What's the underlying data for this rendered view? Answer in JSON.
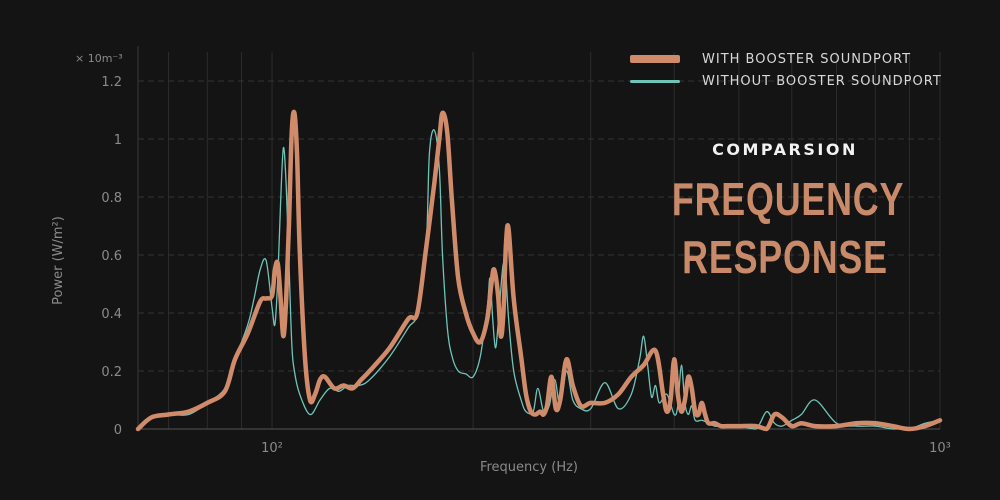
{
  "chart_data": {
    "type": "line",
    "title": "FREQUENCY RESPONSE",
    "kicker": "COMPARSION",
    "xlabel": "Frequency (Hz)",
    "ylabel": "Power (W/m²)",
    "y_multiplier": "× 10m⁻³",
    "x_scale": "log",
    "xlim": [
      63,
      1000
    ],
    "ylim": [
      0,
      1.3
    ],
    "x_ticks": [
      {
        "value": 100,
        "label": "10²"
      },
      {
        "value": 1000,
        "label": "10³"
      }
    ],
    "y_ticks": [
      {
        "value": 0,
        "label": "0"
      },
      {
        "value": 0.2,
        "label": "0.2"
      },
      {
        "value": 0.4,
        "label": "0.4"
      },
      {
        "value": 0.6,
        "label": "0.6"
      },
      {
        "value": 0.8,
        "label": "0.8"
      },
      {
        "value": 1,
        "label": "1"
      },
      {
        "value": 1.2,
        "label": "1.2"
      }
    ],
    "grid": true,
    "legend_position": "top-right",
    "series": [
      {
        "name": "WITH BOOSTER SOUNDPORT",
        "color": "#d08c6a",
        "x": [
          63,
          66,
          70,
          75,
          80,
          85,
          88,
          92,
          96,
          98,
          100,
          101,
          102,
          103,
          104,
          105,
          106,
          107,
          108,
          109,
          110,
          112,
          114,
          116,
          118,
          120,
          124,
          128,
          132,
          136,
          140,
          150,
          160,
          165,
          170,
          175,
          178,
          180,
          183,
          186,
          190,
          195,
          200,
          205,
          210,
          213,
          215,
          218,
          220,
          222,
          224,
          226,
          230,
          236,
          240,
          244,
          248,
          252,
          255,
          258,
          262,
          266,
          270,
          276,
          282,
          290,
          300,
          315,
          330,
          345,
          360,
          375,
          385,
          390,
          395,
          400,
          405,
          410,
          415,
          420,
          425,
          430,
          435,
          440,
          445,
          450,
          460,
          470,
          480,
          500,
          530,
          550,
          565,
          580,
          600,
          620,
          650,
          700,
          750,
          800,
          850,
          900,
          950,
          1000
        ],
        "y": [
          0.0,
          0.04,
          0.05,
          0.06,
          0.09,
          0.13,
          0.24,
          0.33,
          0.44,
          0.45,
          0.46,
          0.55,
          0.57,
          0.45,
          0.32,
          0.45,
          0.7,
          1.02,
          1.09,
          0.95,
          0.62,
          0.25,
          0.1,
          0.12,
          0.17,
          0.18,
          0.14,
          0.15,
          0.14,
          0.17,
          0.2,
          0.28,
          0.38,
          0.4,
          0.62,
          0.85,
          1.0,
          1.09,
          1.02,
          0.78,
          0.52,
          0.4,
          0.33,
          0.3,
          0.38,
          0.5,
          0.55,
          0.46,
          0.32,
          0.4,
          0.64,
          0.69,
          0.45,
          0.25,
          0.12,
          0.06,
          0.05,
          0.06,
          0.05,
          0.08,
          0.18,
          0.07,
          0.1,
          0.24,
          0.15,
          0.08,
          0.09,
          0.09,
          0.12,
          0.18,
          0.22,
          0.27,
          0.12,
          0.06,
          0.1,
          0.24,
          0.12,
          0.06,
          0.1,
          0.18,
          0.14,
          0.06,
          0.05,
          0.09,
          0.05,
          0.02,
          0.02,
          0.01,
          0.01,
          0.01,
          0.01,
          0.0,
          0.05,
          0.04,
          0.01,
          0.02,
          0.01,
          0.01,
          0.02,
          0.02,
          0.01,
          0.0,
          0.01,
          0.03
        ]
      },
      {
        "name": "WITHOUT BOOSTER SOUNDPORT",
        "color": "#6fc4b8",
        "x": [
          63,
          66,
          70,
          75,
          80,
          85,
          88,
          92,
          94,
          96,
          98,
          100,
          101,
          102,
          103,
          104,
          105,
          106,
          107,
          108,
          110,
          114,
          118,
          122,
          126,
          130,
          135,
          140,
          150,
          160,
          165,
          170,
          172,
          175,
          178,
          180,
          183,
          186,
          190,
          195,
          200,
          205,
          210,
          212,
          214,
          216,
          218,
          220,
          222,
          224,
          226,
          230,
          236,
          240,
          246,
          250,
          255,
          260,
          265,
          270,
          276,
          282,
          290,
          300,
          315,
          330,
          345,
          355,
          360,
          365,
          370,
          375,
          380,
          390,
          400,
          405,
          410,
          415,
          420,
          425,
          430,
          440,
          450,
          460,
          470,
          480,
          500,
          530,
          550,
          565,
          580,
          600,
          620,
          650,
          700,
          750,
          800,
          850,
          900,
          950,
          1000
        ],
        "y": [
          0.0,
          0.04,
          0.05,
          0.05,
          0.09,
          0.14,
          0.24,
          0.36,
          0.45,
          0.55,
          0.58,
          0.42,
          0.36,
          0.52,
          0.78,
          0.97,
          0.84,
          0.58,
          0.3,
          0.2,
          0.12,
          0.05,
          0.1,
          0.14,
          0.13,
          0.15,
          0.15,
          0.17,
          0.25,
          0.35,
          0.4,
          0.62,
          0.95,
          1.03,
          0.9,
          0.6,
          0.35,
          0.25,
          0.2,
          0.19,
          0.18,
          0.25,
          0.42,
          0.52,
          0.38,
          0.28,
          0.36,
          0.48,
          0.57,
          0.52,
          0.38,
          0.2,
          0.1,
          0.06,
          0.06,
          0.14,
          0.06,
          0.08,
          0.17,
          0.08,
          0.2,
          0.1,
          0.07,
          0.07,
          0.16,
          0.07,
          0.12,
          0.24,
          0.32,
          0.22,
          0.11,
          0.15,
          0.09,
          0.12,
          0.05,
          0.08,
          0.22,
          0.09,
          0.05,
          0.08,
          0.03,
          0.03,
          0.02,
          0.01,
          0.01,
          0.01,
          0.01,
          0.0,
          0.06,
          0.02,
          0.01,
          0.03,
          0.05,
          0.1,
          0.02,
          0.01,
          0.01,
          0.0,
          0.0,
          0.02,
          0.03
        ]
      }
    ]
  }
}
